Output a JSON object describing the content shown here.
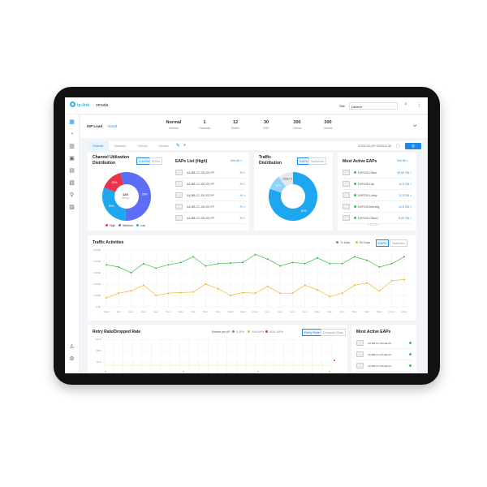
{
  "header": {
    "brand": "tp-link",
    "product": "omada",
    "site_label": "Site",
    "site_value": "Default"
  },
  "status": {
    "title": "ISP Load",
    "state": "Good",
    "stats": [
      {
        "value": "Normal",
        "label": "Internet"
      },
      {
        "value": "1",
        "label": "Gateway"
      },
      {
        "value": "12",
        "label": "Switch"
      },
      {
        "value": "30",
        "label": "EAP"
      },
      {
        "value": "300",
        "label": "Clients"
      },
      {
        "value": "300",
        "label": "Guests"
      }
    ]
  },
  "tabs": [
    "Overall",
    "Network",
    "Clients",
    "Device"
  ],
  "daterange": "2020-04-09~2020-6-30",
  "channel": {
    "title_1": "Channel Utilization",
    "title_2": "Distribution",
    "band_a": "2.4GHz",
    "band_b": "5GHz",
    "center_value": "120",
    "center_label": "TOTAL",
    "slices": [
      {
        "label": "High",
        "pct": "15%",
        "value": 15,
        "color": "#e8334a"
      },
      {
        "label": "Medium",
        "pct": "55%",
        "value": 55,
        "color": "#5b6ef5"
      },
      {
        "label": "Low",
        "pct": "30%",
        "value": 30,
        "color": "#1ea7f0"
      }
    ]
  },
  "eaps_high": {
    "title": "EAPs List (High)",
    "see_all": "See All >",
    "items": [
      {
        "mac": "AA-BB-CC-DD-EE-FF",
        "val": "-% >"
      },
      {
        "mac": "AA-BB-CC-DD-EE-FF",
        "val": "-% >"
      },
      {
        "mac": "AA-BB-CC-DD-EE-FF",
        "val": "-% >"
      },
      {
        "mac": "AA-BB-CC-DD-EE-FF",
        "val": "-% >"
      },
      {
        "mac": "AA-BB-CC-DD-EE-FF",
        "val": "-% >"
      }
    ]
  },
  "traffic_dist": {
    "title_1": "Traffic",
    "title_2": "Distribution",
    "tab_a": "EAPs",
    "tab_b": "Switches",
    "slices": [
      {
        "label": "80%",
        "value": 80,
        "color": "#1ea7f0"
      },
      {
        "label": "10%",
        "value": 10,
        "color": "#8fd3fb"
      },
      {
        "label": "Other 5",
        "value": 10,
        "color": "#e6e8ec"
      }
    ]
  },
  "most_active": {
    "title": "Most Active EAPs",
    "see_all": "See All >",
    "items": [
      {
        "name": "EAP225-Office",
        "val": "39.60 GB >"
      },
      {
        "name": "EAP225-Lab",
        "val": "12.5 GB >"
      },
      {
        "name": "EAP225-Lobby",
        "val": "12.5 GB >"
      },
      {
        "name": "EAP225-Meeting",
        "val": "12.5 GB >"
      },
      {
        "name": "EAP225-Office1",
        "val": "8.50 GB >"
      }
    ],
    "pages": "< 1 2 3 >"
  },
  "traffic": {
    "title": "Traffic Activities",
    "legend_tx": "Tx Data",
    "legend_rx": "Rx Data",
    "tab_a": "EAPs",
    "tab_b": "Switches",
    "chart_data": {
      "type": "line",
      "ylim": [
        0,
        5000
      ],
      "yticks": [
        "0.0k",
        "1,000k",
        "2,000k",
        "3,000k",
        "4,000k",
        "5,000k"
      ],
      "x": [
        "12am",
        "1am",
        "2am",
        "3am",
        "4am",
        "5am",
        "6am",
        "7am",
        "8am",
        "9am",
        "10am",
        "11am",
        "12pm",
        "1pm",
        "2pm",
        "3pm",
        "4pm",
        "5pm",
        "6pm",
        "7pm",
        "8pm",
        "9pm",
        "10pm",
        "11pm",
        "12am"
      ],
      "series": [
        {
          "name": "Tx Data",
          "color": "#3dbf4a",
          "values": [
            3700,
            3500,
            3000,
            3800,
            3400,
            3700,
            3900,
            4400,
            3600,
            3800,
            3850,
            3900,
            4600,
            4200,
            3600,
            3900,
            3800,
            4300,
            3800,
            3800,
            4400,
            4100,
            3500,
            3800,
            4400
          ]
        },
        {
          "name": "Rx Data",
          "color": "#f5b731",
          "values": [
            800,
            1200,
            1400,
            1900,
            1000,
            1200,
            1250,
            1300,
            2000,
            1600,
            1000,
            1250,
            1200,
            1800,
            1200,
            1200,
            1900,
            1500,
            900,
            1200,
            1900,
            2100,
            1400,
            2300,
            2400
          ]
        }
      ]
    }
  },
  "retry": {
    "title": "Retry Rate/Dropped Rate",
    "legend_label": "Retries per AP:",
    "legend": [
      "0-40%",
      "40%-60%",
      "60%-100%"
    ],
    "tab_a": "Retry Rate",
    "tab_b": "Dropped Rate",
    "yticks": [
      "100%",
      "80%",
      "60%"
    ]
  },
  "bottom_active": {
    "title": "Most Active EAPs",
    "items": [
      "AA-BB-CC-DD-EE-FF",
      "AA-BB-CC-DD-EE-FF",
      "AA-BB-CC-DD-EE-FF"
    ]
  }
}
